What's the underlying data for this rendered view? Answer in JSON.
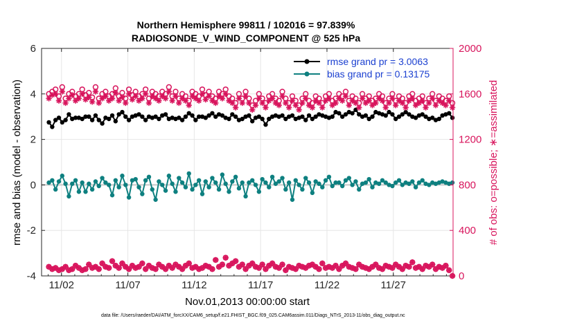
{
  "chart_data": {
    "type": "line",
    "title": "Northern Hemisphere 99811 / 102016 = 97.839%",
    "subtitle": "RADIOSONDE_V_WIND_COMPONENT @ 525 hPa",
    "xlabel": "Nov.01,2013 00:00:00 start",
    "ylabel_left": "rmse and bias (model - observation)",
    "ylabel_right": "# of obs: o=possible; ∗=assimilated",
    "footer": "data file: /Users/raeder/DAI/ATM_forcXX/CAM6_setup/f.e21.FHIST_BGC.f09_025.CAM6assim.011/Diags_NTrS_2013-11/obs_diag_output.nc",
    "xlim": [
      0.5,
      31.5
    ],
    "ylim_left": [
      -4,
      6
    ],
    "ylim_right": [
      0,
      2000
    ],
    "x_ticks": [
      2,
      7,
      12,
      17,
      22,
      27
    ],
    "x_tick_labels": [
      "11/02",
      "11/07",
      "11/12",
      "11/17",
      "11/22",
      "11/27"
    ],
    "y_ticks_left": [
      -4,
      -2,
      0,
      2,
      4,
      6
    ],
    "y_tick_labels_left": [
      "-4",
      "-2",
      "0",
      "2",
      "4",
      "6"
    ],
    "y_ticks_right": [
      0,
      400,
      800,
      1200,
      1600,
      2000
    ],
    "y_tick_labels_right": [
      "0",
      "400",
      "800",
      "1200",
      "1600",
      "2000"
    ],
    "grid": true,
    "legend_position": "top-right",
    "colors": {
      "rmse": "#000000",
      "bias": "#0e8080",
      "obs": "#d8145c",
      "zero_line": "#c8c8c8",
      "legend_text": "#1a3fd0"
    },
    "series": [
      {
        "name": "rmse grand pr = 3.0063",
        "axis": "left",
        "marker": "filled-circle",
        "values": [
          2.75,
          2.55,
          2.85,
          2.95,
          2.75,
          2.85,
          3.1,
          2.9,
          2.95,
          2.95,
          2.9,
          3.0,
          3.0,
          2.85,
          3.05,
          2.85,
          2.7,
          2.95,
          2.9,
          3.05,
          2.8,
          3.1,
          3.2,
          3.0,
          2.85,
          3.0,
          3.05,
          3.1,
          3.0,
          2.85,
          3.0,
          2.95,
          3.0,
          2.9,
          3.05,
          3.1,
          2.9,
          2.95,
          2.9,
          2.95,
          2.85,
          3.0,
          3.15,
          3.05,
          2.85,
          3.0,
          3.0,
          2.95,
          3.05,
          3.15,
          3.0,
          3.1,
          3.05,
          2.95,
          2.9,
          3.1,
          3.0,
          2.85,
          2.9,
          3.0,
          3.05,
          2.8,
          2.95,
          3.0,
          2.9,
          2.65,
          2.9,
          3.0,
          3.05,
          3.0,
          3.05,
          2.9,
          3.0,
          3.05,
          2.9,
          2.95,
          3.0,
          2.85,
          3.05,
          2.9,
          3.0,
          3.1,
          3.05,
          3.0,
          2.95,
          3.0,
          3.2,
          3.15,
          3.0,
          3.1,
          3.2,
          3.15,
          3.3,
          3.1,
          3.0,
          3.05,
          2.9,
          3.0,
          3.2,
          3.15,
          3.1,
          3.05,
          3.2,
          3.1,
          2.9,
          3.0,
          3.1,
          3.2,
          3.1,
          3.0,
          2.95,
          3.05,
          3.1,
          3.0,
          2.9,
          2.95,
          2.85,
          2.9,
          3.05,
          3.1,
          3.15,
          2.95
        ]
      },
      {
        "name": "bias grand pr = 0.13175",
        "axis": "left",
        "marker": "filled-circle",
        "values": [
          0.1,
          0.2,
          -0.2,
          0.15,
          0.4,
          0.05,
          -0.5,
          0.05,
          0.2,
          -0.3,
          0.1,
          -0.3,
          0.05,
          -0.2,
          0.15,
          -0.05,
          0.3,
          0.1,
          0.0,
          -0.45,
          0.2,
          -0.1,
          0.4,
          0.0,
          -0.55,
          0.2,
          0.25,
          -0.1,
          -0.4,
          0.2,
          0.35,
          -0.2,
          -0.65,
          0.15,
          0.0,
          -0.25,
          0.4,
          0.05,
          -0.3,
          0.3,
          0.1,
          -0.1,
          0.5,
          -0.2,
          0.0,
          0.2,
          -0.4,
          0.15,
          -0.1,
          0.3,
          0.1,
          -0.2,
          0.45,
          0.05,
          -0.3,
          0.15,
          0.35,
          -0.15,
          0.1,
          -0.5,
          0.1,
          0.2,
          0.0,
          -0.3,
          0.25,
          0.1,
          -0.1,
          0.35,
          0.05,
          0.15,
          0.3,
          -0.2,
          0.1,
          -0.65,
          0.2,
          0.0,
          -0.2,
          0.3,
          0.1,
          -0.35,
          0.15,
          0.05,
          -0.1,
          0.2,
          0.35,
          -0.05,
          0.1,
          0.1,
          -0.05,
          0.2,
          0.3,
          0.0,
          0.15,
          -0.2,
          0.05,
          0.1,
          0.25,
          -0.1,
          0.1,
          0.05,
          0.2,
          0.1,
          0.0,
          -0.05,
          0.1,
          0.2,
          0.0,
          0.1,
          0.05,
          0.15,
          -0.1,
          0.1,
          0.2,
          0.05,
          0.0,
          0.1,
          0.05,
          0.1,
          0.15,
          0.1,
          0.05,
          0.1
        ]
      },
      {
        "name": "# of obs possible",
        "axis": "right",
        "marker": "open-circle",
        "values": [
          1600,
          1620,
          1640,
          1580,
          1660,
          1560,
          1600,
          1620,
          1580,
          1600,
          1640,
          1590,
          1610,
          1570,
          1660,
          1560,
          1600,
          1620,
          1580,
          1600,
          1650,
          1580,
          1610,
          1560,
          1640,
          1590,
          1620,
          1580,
          1600,
          1640,
          1560,
          1620,
          1600,
          1580,
          1620,
          1600,
          1660,
          1580,
          1620,
          1560,
          1600,
          1580,
          1540,
          1620,
          1600,
          1580,
          1640,
          1590,
          1620,
          1580,
          1560,
          1620,
          1600,
          1640,
          1580,
          1560,
          1520,
          1600,
          1560,
          1620,
          1560,
          1500,
          1540,
          1600,
          1560,
          1520,
          1580,
          1600,
          1560,
          1540,
          1620,
          1560,
          1520,
          1580,
          1540,
          1500,
          1560,
          1600,
          1540,
          1520,
          1580,
          1560,
          1520,
          1580,
          1600,
          1540,
          1560,
          1600,
          1580,
          1620,
          1540,
          1580,
          1560,
          1520,
          1600,
          1560,
          1580,
          1540,
          1560,
          1600,
          1580,
          1520,
          1560,
          1600,
          1540,
          1580,
          1560,
          1520,
          1580,
          1600,
          1540,
          1560,
          1580,
          1520,
          1560,
          1600,
          1540,
          1580,
          1560,
          1540,
          1580,
          1520
        ]
      },
      {
        "name": "# of obs assimilated",
        "axis": "right",
        "marker": "asterisk",
        "values": [
          1560,
          1590,
          1600,
          1540,
          1620,
          1520,
          1560,
          1590,
          1540,
          1560,
          1600,
          1550,
          1570,
          1530,
          1620,
          1520,
          1560,
          1580,
          1540,
          1560,
          1610,
          1540,
          1570,
          1520,
          1600,
          1550,
          1580,
          1540,
          1560,
          1600,
          1520,
          1580,
          1560,
          1540,
          1580,
          1560,
          1620,
          1540,
          1580,
          1520,
          1560,
          1540,
          1500,
          1580,
          1560,
          1540,
          1600,
          1550,
          1580,
          1540,
          1520,
          1580,
          1560,
          1600,
          1540,
          1520,
          1480,
          1560,
          1520,
          1580,
          1520,
          1460,
          1500,
          1560,
          1520,
          1480,
          1540,
          1560,
          1520,
          1500,
          1580,
          1520,
          1480,
          1540,
          1500,
          1460,
          1520,
          1560,
          1500,
          1480,
          1540,
          1520,
          1480,
          1540,
          1560,
          1500,
          1520,
          1560,
          1540,
          1580,
          1500,
          1540,
          1520,
          1480,
          1560,
          1520,
          1540,
          1500,
          1520,
          1560,
          1540,
          1480,
          1520,
          1560,
          1500,
          1540,
          1520,
          1480,
          1540,
          1560,
          1500,
          1520,
          1540,
          1480,
          1520,
          1560,
          1500,
          1540,
          1520,
          1500,
          1540,
          1480
        ]
      },
      {
        "name": "# of obs possible (lower)",
        "axis": "right",
        "marker": "open-circle",
        "values": [
          80,
          60,
          70,
          50,
          60,
          80,
          50,
          60,
          90,
          70,
          50,
          60,
          100,
          70,
          80,
          60,
          110,
          80,
          70,
          130,
          90,
          70,
          110,
          80,
          60,
          90,
          70,
          80,
          110,
          60,
          90,
          70,
          60,
          100,
          80,
          60,
          90,
          70,
          100,
          80,
          60,
          90,
          110,
          70,
          80,
          60,
          70,
          90,
          80,
          60,
          140,
          80,
          100,
          160,
          90,
          110,
          130,
          80,
          100,
          60,
          90,
          110,
          80,
          70,
          100,
          60,
          90,
          110,
          80,
          70,
          100,
          50,
          80,
          70,
          60,
          90,
          80,
          70,
          90,
          100,
          80,
          60,
          110,
          70,
          80,
          70,
          90,
          60,
          90,
          110,
          80,
          70,
          60,
          100,
          80,
          70,
          60,
          80,
          100,
          70,
          60,
          90,
          80,
          70,
          100,
          80,
          60,
          90,
          80,
          120,
          70,
          80,
          60,
          90,
          80,
          100,
          60,
          80,
          70,
          90,
          50,
          0
        ]
      },
      {
        "name": "# of obs assimilated (lower)",
        "axis": "right",
        "marker": "asterisk",
        "values": [
          80,
          60,
          70,
          50,
          60,
          80,
          50,
          60,
          90,
          70,
          50,
          60,
          100,
          70,
          80,
          60,
          110,
          80,
          70,
          130,
          90,
          70,
          110,
          80,
          60,
          90,
          70,
          80,
          110,
          60,
          90,
          70,
          60,
          100,
          80,
          60,
          90,
          70,
          100,
          80,
          60,
          90,
          110,
          70,
          80,
          60,
          70,
          90,
          80,
          60,
          140,
          80,
          100,
          160,
          90,
          110,
          130,
          80,
          100,
          60,
          90,
          110,
          80,
          70,
          100,
          60,
          90,
          110,
          80,
          70,
          100,
          50,
          80,
          70,
          60,
          90,
          80,
          70,
          90,
          100,
          80,
          60,
          110,
          70,
          80,
          70,
          90,
          60,
          90,
          110,
          80,
          70,
          60,
          100,
          80,
          70,
          60,
          80,
          100,
          70,
          60,
          90,
          80,
          70,
          100,
          80,
          60,
          90,
          80,
          120,
          70,
          80,
          60,
          90,
          80,
          100,
          60,
          80,
          70,
          90,
          50,
          0
        ]
      }
    ]
  }
}
